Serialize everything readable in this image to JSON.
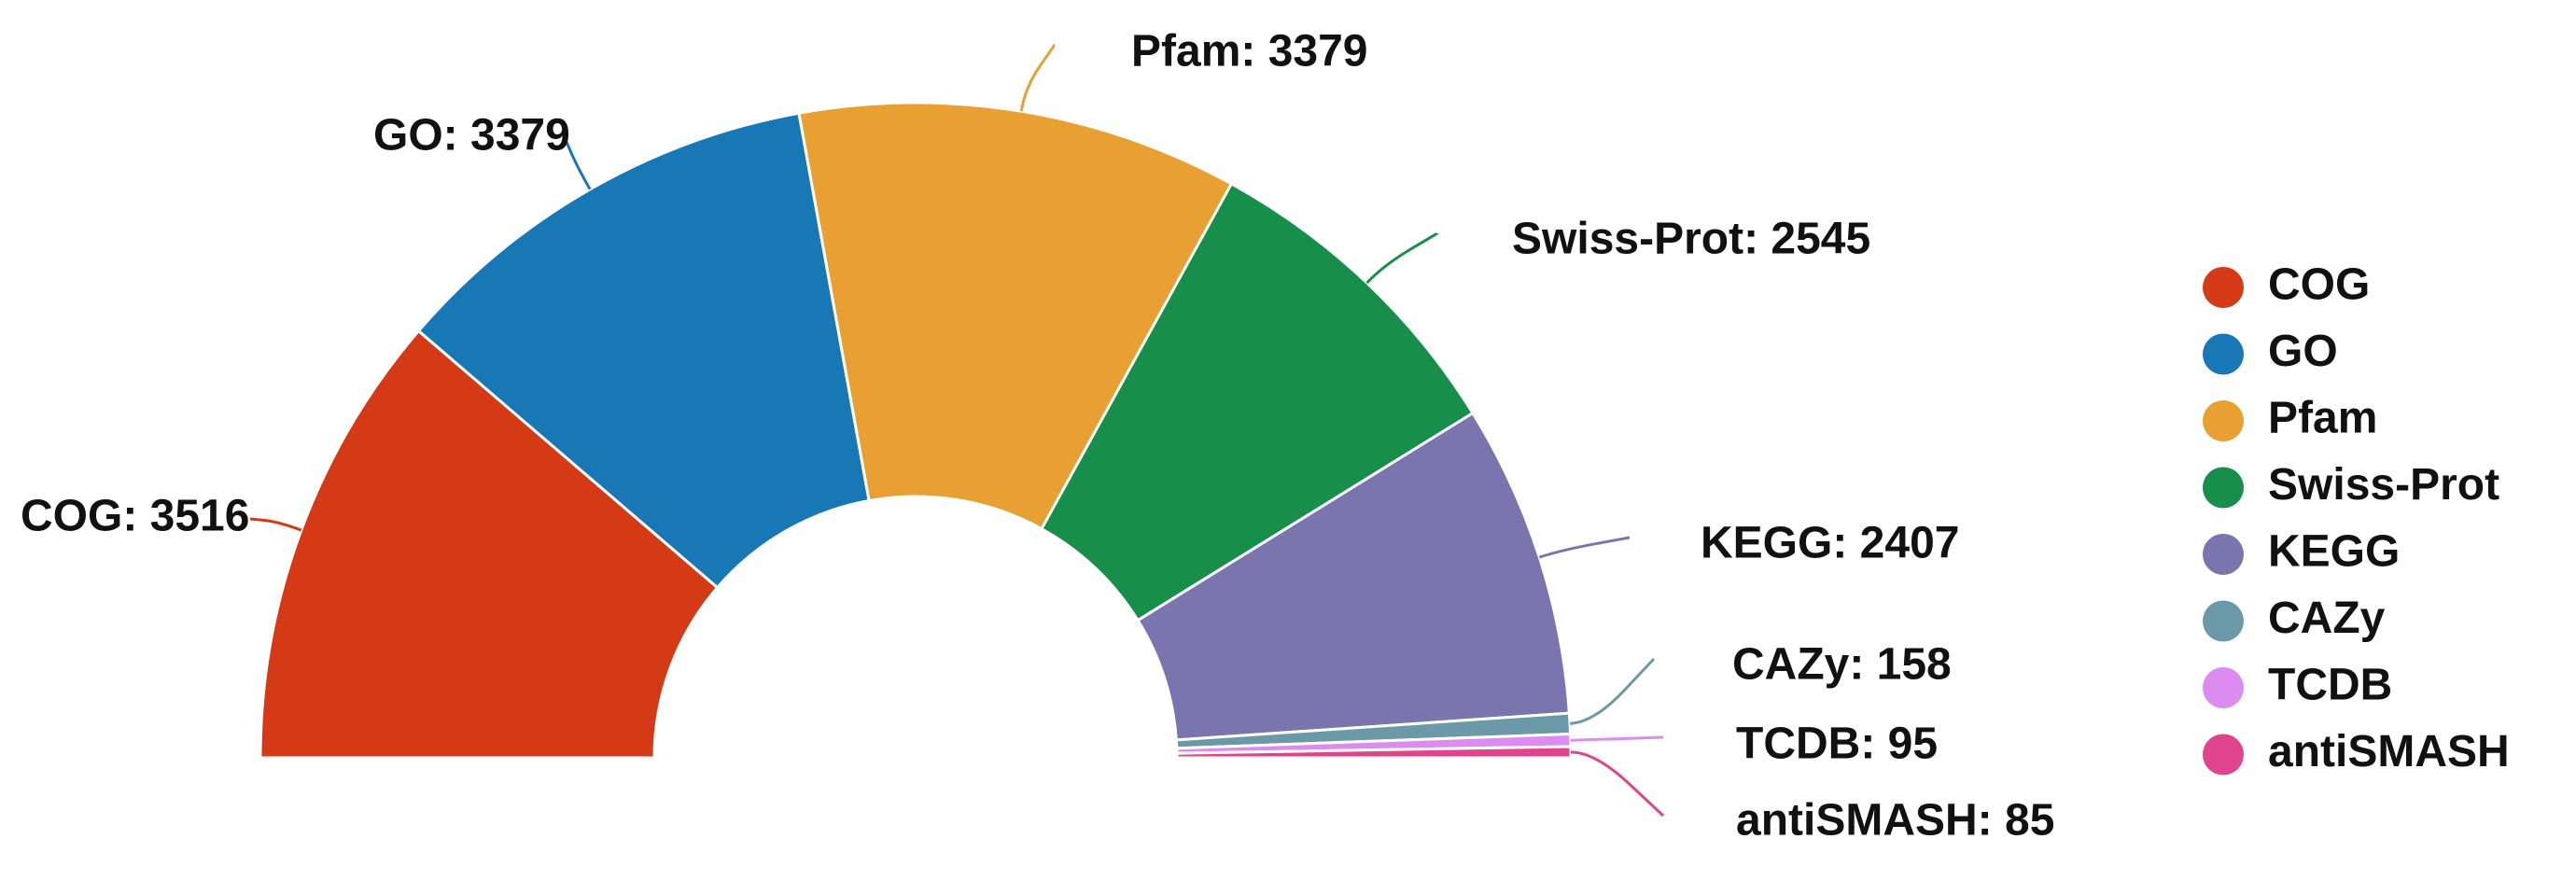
{
  "chart_data": {
    "type": "pie",
    "subtype": "half-donut",
    "categories": [
      "COG",
      "GO",
      "Pfam",
      "Swiss-Prot",
      "KEGG",
      "CAZy",
      "TCDB",
      "antiSMASH"
    ],
    "values": [
      3516,
      3379,
      3379,
      2545,
      2407,
      158,
      95,
      85
    ],
    "labels": [
      "COG: 3516",
      "GO: 3379",
      "Pfam: 3379",
      "Swiss-Prot: 2545",
      "KEGG: 2407",
      "CAZy: 158",
      "TCDB: 95",
      "antiSMASH: 85"
    ],
    "colors": [
      "#d43a16",
      "#1878b5",
      "#e8a033",
      "#178e49",
      "#7a75ae",
      "#6b99a8",
      "#dc8cf1",
      "#e0448c"
    ],
    "legend": {
      "position": "right",
      "items": [
        "COG",
        "GO",
        "Pfam",
        "Swiss-Prot",
        "KEGG",
        "CAZy",
        "TCDB",
        "antiSMASH"
      ]
    }
  }
}
